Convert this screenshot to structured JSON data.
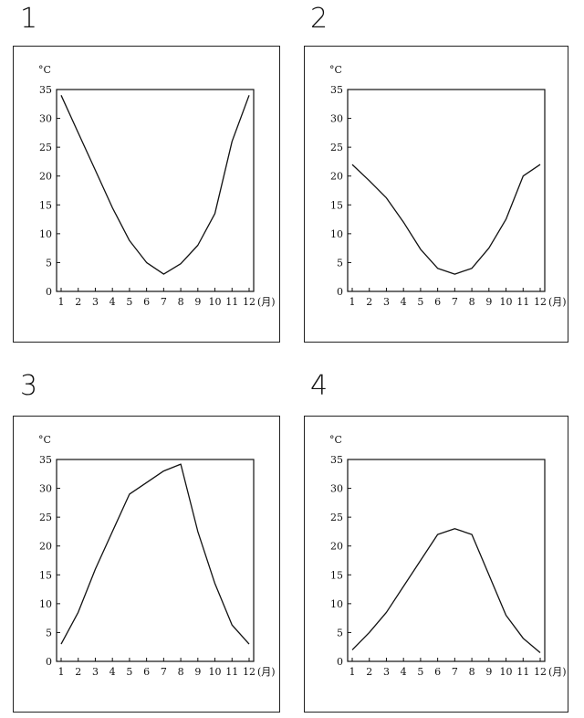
{
  "chart_data": [
    {
      "type": "line",
      "panel_label": "1",
      "ylabel": "°C",
      "xunit": "(月)",
      "x": [
        1,
        2,
        3,
        4,
        5,
        6,
        7,
        8,
        9,
        10,
        11,
        12
      ],
      "y": [
        34,
        27.5,
        21,
        14.5,
        8.8,
        5,
        3,
        4.8,
        8,
        13.5,
        26,
        34
      ],
      "ylim": [
        0,
        35
      ],
      "yticks": [
        0,
        5,
        10,
        15,
        20,
        25,
        30,
        35
      ]
    },
    {
      "type": "line",
      "panel_label": "2",
      "ylabel": "°C",
      "xunit": "(月)",
      "x": [
        1,
        2,
        3,
        4,
        5,
        6,
        7,
        8,
        9,
        10,
        11,
        12
      ],
      "y": [
        22,
        19.2,
        16.2,
        12,
        7.3,
        4,
        3,
        4,
        7.5,
        12.5,
        20,
        22
      ],
      "ylim": [
        0,
        35
      ],
      "yticks": [
        0,
        5,
        10,
        15,
        20,
        25,
        30,
        35
      ]
    },
    {
      "type": "line",
      "panel_label": "3",
      "ylabel": "°C",
      "xunit": "(月)",
      "x": [
        1,
        2,
        3,
        4,
        5,
        6,
        7,
        8,
        9,
        10,
        11,
        12
      ],
      "y": [
        3,
        8.5,
        16,
        22.5,
        29,
        31,
        33,
        34.2,
        22.5,
        13.5,
        6.3,
        3
      ],
      "ylim": [
        0,
        35
      ],
      "yticks": [
        0,
        5,
        10,
        15,
        20,
        25,
        30,
        35
      ]
    },
    {
      "type": "line",
      "panel_label": "4",
      "ylabel": "°C",
      "xunit": "(月)",
      "x": [
        1,
        2,
        3,
        4,
        5,
        6,
        7,
        8,
        9,
        10,
        11,
        12
      ],
      "y": [
        2,
        5,
        8.5,
        13,
        17.5,
        22,
        23,
        22,
        15,
        8,
        4,
        1.5
      ],
      "ylim": [
        0,
        35
      ],
      "yticks": [
        0,
        5,
        10,
        15,
        20,
        25,
        30,
        35
      ]
    }
  ]
}
